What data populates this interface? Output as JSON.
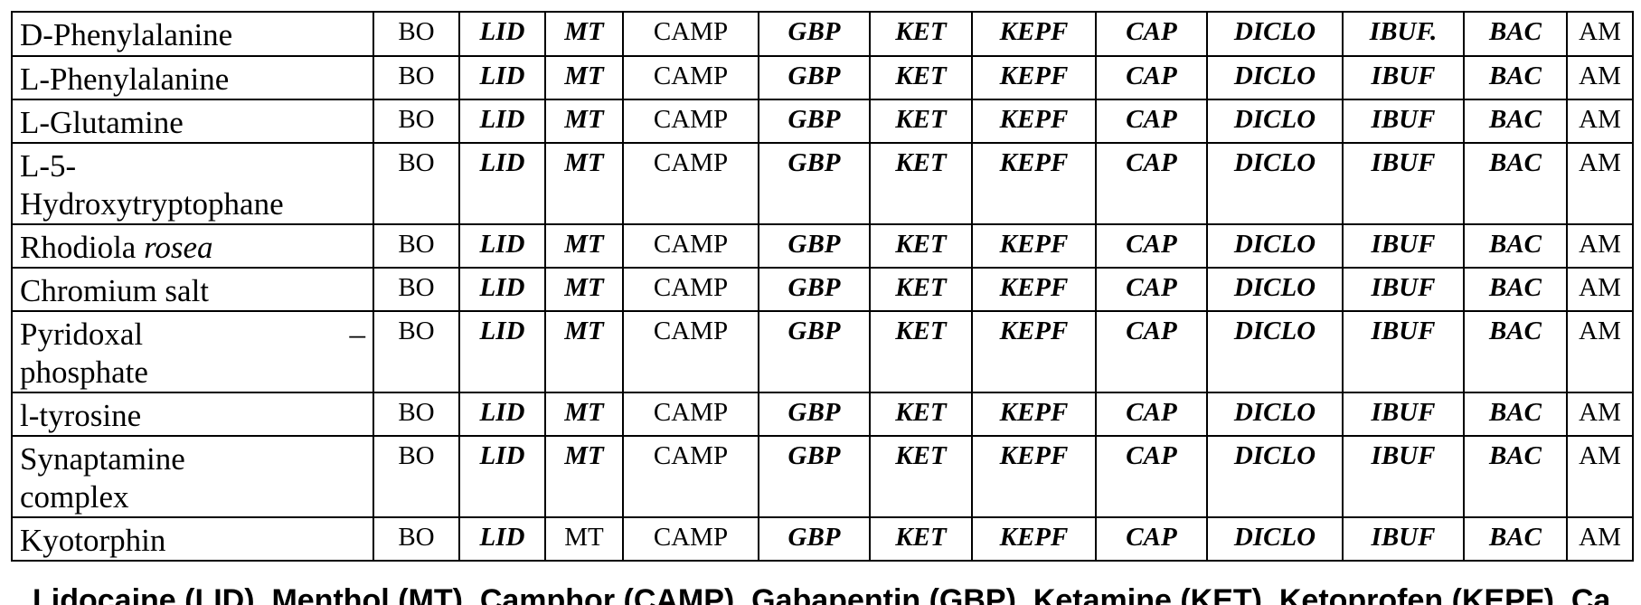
{
  "rows": [
    {
      "name": "D-Phenylalanine",
      "codes": [
        "BO",
        "LID",
        "MT",
        "CAMP",
        "GBP",
        "KET",
        "KEPF",
        "CAP",
        "DICLO",
        "IBUF.",
        "BAC",
        "AM"
      ]
    },
    {
      "name": "L-Phenylalanine",
      "codes": [
        "BO",
        "LID",
        "MT",
        "CAMP",
        "GBP",
        "KET",
        "KEPF",
        "CAP",
        "DICLO",
        "IBUF",
        "BAC",
        "AM"
      ]
    },
    {
      "name": "L-Glutamine",
      "codes": [
        "BO",
        "LID",
        "MT",
        "CAMP",
        "GBP",
        "KET",
        "KEPF",
        "CAP",
        "DICLO",
        "IBUF",
        "BAC",
        "AM"
      ]
    },
    {
      "name_line1": "L-5-",
      "name_line2": "Hydroxytryptophane",
      "codes": [
        "BO",
        "LID",
        "MT",
        "CAMP",
        "GBP",
        "KET",
        "KEPF",
        "CAP",
        "DICLO",
        "IBUF",
        "BAC",
        "AM"
      ]
    },
    {
      "name_plain": "Rhodiola",
      "name_italic": "rosea",
      "codes": [
        "BO",
        "LID",
        "MT",
        "CAMP",
        "GBP",
        "KET",
        "KEPF",
        "CAP",
        "DICLO",
        "IBUF",
        "BAC",
        "AM"
      ]
    },
    {
      "name": "Chromium salt",
      "codes": [
        "BO",
        "LID",
        "MT",
        "CAMP",
        "GBP",
        "KET",
        "KEPF",
        "CAP",
        "DICLO",
        "IBUF",
        "BAC",
        "AM"
      ]
    },
    {
      "name_line1": "Pyridoxal",
      "name_dash": "–",
      "name_line2": "phosphate",
      "codes": [
        "BO",
        "LID",
        "MT",
        "CAMP",
        "GBP",
        "KET",
        "KEPF",
        "CAP",
        "DICLO",
        "IBUF",
        "BAC",
        "AM"
      ]
    },
    {
      "name": "l-tyrosine",
      "codes": [
        "BO",
        "LID",
        "MT",
        "CAMP",
        "GBP",
        "KET",
        "KEPF",
        "CAP",
        "DICLO",
        "IBUF",
        "BAC",
        "AM"
      ]
    },
    {
      "name_line1": "Synaptamine",
      "name_line2": "complex",
      "codes": [
        "BO",
        "LID",
        "MT",
        "CAMP",
        "GBP",
        "KET",
        "KEPF",
        "CAP",
        "DICLO",
        "IBUF",
        "BAC",
        "AM"
      ]
    },
    {
      "name": "Kyotorphin",
      "codes": [
        "BO",
        "LID",
        "MT",
        "CAMP",
        "GBP",
        "KET",
        "KEPF",
        "CAP",
        "DICLO",
        "IBUF",
        "BAC",
        "AM"
      ]
    }
  ],
  "caption_partial": "Lidocaine (LID), Menthol (MT), Camphor (CAMP), Gabapentin (GBP), Ketamine (KET), Ketoprofen (KEPF), Ca"
}
